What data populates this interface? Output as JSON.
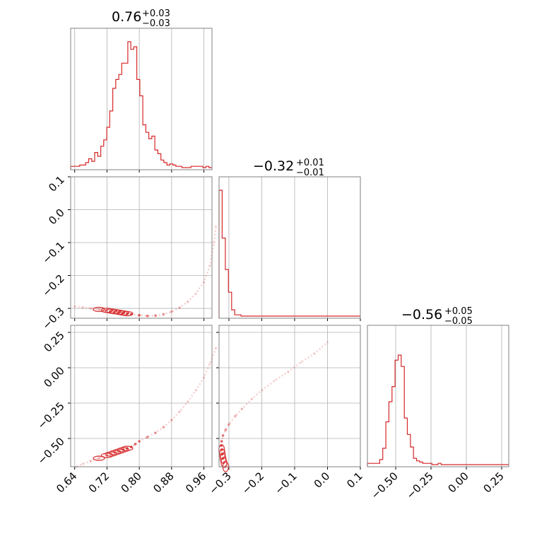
{
  "chart_data": {
    "type": "corner",
    "color": "#d62728",
    "parameters": [
      {
        "median": "0.76",
        "plus": "+0.03",
        "minus": "−0.03",
        "range": [
          0.63,
          0.98
        ]
      },
      {
        "median": "−0.32",
        "plus": "+0.01",
        "minus": "−0.01",
        "range": [
          -0.33,
          0.1
        ]
      },
      {
        "median": "−0.56",
        "plus": "+0.05",
        "minus": "−0.05",
        "range": [
          -0.7,
          0.3
        ]
      }
    ],
    "axis_ticks": [
      {
        "values": [
          0.64,
          0.72,
          0.8,
          0.88,
          0.96
        ],
        "labels": [
          "0.64",
          "0.72",
          "0.80",
          "0.88",
          "0.96"
        ]
      },
      {
        "values": [
          -0.3,
          -0.2,
          -0.1,
          0.0,
          0.1
        ],
        "labels": [
          "−0.3",
          "−0.2",
          "−0.1",
          "0.0",
          "0.1"
        ]
      },
      {
        "values": [
          -0.5,
          -0.25,
          0.0,
          0.25
        ],
        "labels": [
          "−0.50",
          "−0.25",
          "0.00",
          "0.25"
        ]
      }
    ],
    "histograms": [
      {
        "param": 0,
        "counts": [
          0.01,
          0.01,
          0.01,
          0.02,
          0.02,
          0.04,
          0.07,
          0.05,
          0.12,
          0.09,
          0.17,
          0.22,
          0.32,
          0.45,
          0.63,
          0.7,
          0.74,
          0.83,
          0.83,
          1.0,
          0.94,
          0.96,
          0.7,
          0.57,
          0.34,
          0.28,
          0.23,
          0.25,
          0.14,
          0.11,
          0.06,
          0.04,
          0.02,
          0.03,
          0.02,
          0.01,
          0.01,
          0.0,
          0.0,
          0.0,
          0.01,
          0.01,
          0.01,
          0.01,
          0.0,
          0.01,
          0.0
        ]
      },
      {
        "param": 1,
        "counts": [
          1.0,
          0.62,
          0.37,
          0.19,
          0.05,
          0.01,
          0.01,
          0.0,
          0.0,
          0.0,
          0.0,
          0.0,
          0.0,
          0.0,
          0.0,
          0.0,
          0.0,
          0.0,
          0.0,
          0.0,
          0.0,
          0.0,
          0.0,
          0.0,
          0.0,
          0.0,
          0.0,
          0.0,
          0.0,
          0.0,
          0.0,
          0.0,
          0.0,
          0.0,
          0.0,
          0.0,
          0.0,
          0.0,
          0.0,
          0.0,
          0.0,
          0.0,
          0.0,
          0.0,
          0.0
        ]
      },
      {
        "param": 2,
        "counts": [
          0.01,
          0.01,
          0.01,
          0.01,
          0.04,
          0.13,
          0.34,
          0.5,
          0.62,
          0.83,
          0.87,
          0.78,
          0.37,
          0.24,
          0.14,
          0.05,
          0.03,
          0.02,
          0.01,
          0.01,
          0.01,
          0.0,
          0.0,
          0.01,
          0.0,
          0.0,
          0.0,
          0.0,
          0.0,
          0.0,
          0.0,
          0.0,
          0.0,
          0.0,
          0.0,
          0.0,
          0.0,
          0.0,
          0.0,
          0.0,
          0.0,
          0.0,
          0.0,
          0.0,
          0.0,
          0.0
        ]
      }
    ],
    "scatter": [
      {
        "x_param": 0,
        "y_param": 1,
        "points": [
          [
            0.64,
            -0.294
          ],
          [
            0.66,
            -0.297
          ],
          [
            0.68,
            -0.3
          ],
          [
            0.7,
            -0.303
          ],
          [
            0.72,
            -0.306
          ],
          [
            0.73,
            -0.308
          ],
          [
            0.74,
            -0.31
          ],
          [
            0.75,
            -0.312
          ],
          [
            0.76,
            -0.314
          ],
          [
            0.77,
            -0.316
          ],
          [
            0.78,
            -0.318
          ],
          [
            0.8,
            -0.321
          ],
          [
            0.82,
            -0.323
          ],
          [
            0.84,
            -0.322
          ],
          [
            0.86,
            -0.318
          ],
          [
            0.88,
            -0.31
          ],
          [
            0.9,
            -0.298
          ],
          [
            0.92,
            -0.28
          ],
          [
            0.94,
            -0.255
          ],
          [
            0.96,
            -0.22
          ],
          [
            0.975,
            -0.17
          ],
          [
            0.985,
            -0.1
          ],
          [
            0.99,
            -0.05
          ]
        ]
      },
      {
        "x_param": 0,
        "y_param": 2,
        "points": [
          [
            0.645,
            -0.7
          ],
          [
            0.66,
            -0.68
          ],
          [
            0.68,
            -0.66
          ],
          [
            0.7,
            -0.64
          ],
          [
            0.72,
            -0.62
          ],
          [
            0.73,
            -0.61
          ],
          [
            0.74,
            -0.6
          ],
          [
            0.75,
            -0.59
          ],
          [
            0.76,
            -0.58
          ],
          [
            0.77,
            -0.57
          ],
          [
            0.78,
            -0.56
          ],
          [
            0.79,
            -0.54
          ],
          [
            0.8,
            -0.52
          ],
          [
            0.82,
            -0.49
          ],
          [
            0.84,
            -0.46
          ],
          [
            0.86,
            -0.42
          ],
          [
            0.88,
            -0.37
          ],
          [
            0.9,
            -0.31
          ],
          [
            0.92,
            -0.24
          ],
          [
            0.94,
            -0.16
          ],
          [
            0.96,
            -0.07
          ],
          [
            0.975,
            0.03
          ],
          [
            0.99,
            0.14
          ]
        ]
      },
      {
        "x_param": 1,
        "y_param": 2,
        "points": [
          [
            -0.31,
            -0.7
          ],
          [
            -0.315,
            -0.67
          ],
          [
            -0.318,
            -0.64
          ],
          [
            -0.32,
            -0.61
          ],
          [
            -0.322,
            -0.58
          ],
          [
            -0.323,
            -0.55
          ],
          [
            -0.322,
            -0.52
          ],
          [
            -0.318,
            -0.48
          ],
          [
            -0.31,
            -0.44
          ],
          [
            -0.3,
            -0.4
          ],
          [
            -0.28,
            -0.34
          ],
          [
            -0.26,
            -0.29
          ],
          [
            -0.23,
            -0.22
          ],
          [
            -0.2,
            -0.16
          ],
          [
            -0.16,
            -0.09
          ],
          [
            -0.12,
            -0.03
          ],
          [
            -0.08,
            0.04
          ],
          [
            -0.04,
            0.1
          ],
          [
            0.0,
            0.18
          ]
        ]
      }
    ]
  }
}
